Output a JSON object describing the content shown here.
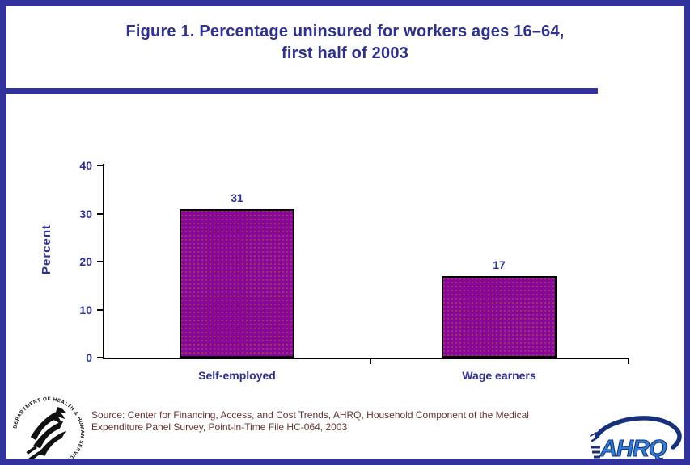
{
  "page": {
    "title_line1": "Figure 1. Percentage uninsured for workers ages 16–64,",
    "title_line2": "first half of 2003",
    "source_line1": "Source: Center for Financing, Access, and Cost Trends, AHRQ, Household Component of the Medical",
    "source_line2": "Expenditure Panel Survey, Point-in-Time File HC-064, 2003"
  },
  "logos": {
    "hhs": {
      "ring_text": "DEPARTMENT OF HEALTH & HUMAN SERVICES · USA"
    },
    "ahrq": {
      "text": "AHRQ"
    }
  },
  "colors": {
    "border_blue": "#31329b",
    "title_blue": "#2e3192",
    "label_navy": "#2f3097",
    "bar_fill": "#8a069b",
    "bar_dot_olive": "#a0821e",
    "bar_border": "#000000",
    "axis_black": "#000000",
    "source_maroon": "#663333",
    "ahrq_letter_blue": "#2e7fd8",
    "ahrq_swoosh_navy": "#16307e"
  },
  "chart_data": {
    "type": "bar",
    "title": "Figure 1. Percentage uninsured for workers ages 16–64, first half of 2003",
    "categories": [
      "Self-employed",
      "Wage earners"
    ],
    "values": [
      31,
      17
    ],
    "value_labels": [
      "31",
      "17"
    ],
    "xlabel": "",
    "ylabel": "Percent",
    "ylim": [
      0,
      40
    ],
    "yticks": [
      0,
      10,
      20,
      30,
      40
    ],
    "grid": false,
    "legend": false
  }
}
